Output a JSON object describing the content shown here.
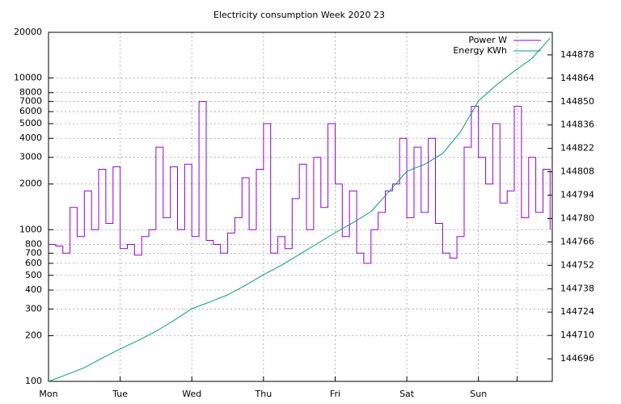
{
  "chart_data": {
    "type": "line",
    "title": "Electricity consumption Week 2020 23",
    "xlim": [
      0,
      7.03
    ],
    "xticks": [
      {
        "value": 0,
        "label": "Mon"
      },
      {
        "value": 1,
        "label": "Tue"
      },
      {
        "value": 2,
        "label": "Wed"
      },
      {
        "value": 3,
        "label": "Thu"
      },
      {
        "value": 4,
        "label": "Fri"
      },
      {
        "value": 5,
        "label": "Sat"
      },
      {
        "value": 6,
        "label": "Sun"
      },
      {
        "value": 6.54,
        "label": null
      }
    ],
    "ylim": [
      100,
      20000
    ],
    "log_y": true,
    "yticks": [
      100,
      200,
      300,
      400,
      500,
      600,
      700,
      800,
      1000,
      2000,
      3000,
      4000,
      5000,
      6000,
      7000,
      8000,
      10000,
      20000
    ],
    "y2lim": [
      144682.5,
      144891.5
    ],
    "y2ticks": [
      144696,
      144710,
      144724,
      144738,
      144752,
      144766,
      144780,
      144794,
      144808,
      144822,
      144836,
      144850,
      144864,
      144878
    ],
    "grid": true,
    "legend": "top-right",
    "series": [
      {
        "name": "Power W",
        "color": "#9400d3",
        "x": [
          0,
          0.1,
          0.2,
          0.3,
          0.4,
          0.5,
          0.6,
          0.7,
          0.8,
          0.9,
          1,
          1.1,
          1.2,
          1.3,
          1.4,
          1.5,
          1.6,
          1.7,
          1.8,
          1.9,
          2,
          2.1,
          2.2,
          2.3,
          2.4,
          2.5,
          2.6,
          2.7,
          2.8,
          2.9,
          3,
          3.1,
          3.2,
          3.3,
          3.4,
          3.5,
          3.6,
          3.7,
          3.8,
          3.9,
          4,
          4.1,
          4.2,
          4.3,
          4.4,
          4.5,
          4.6,
          4.7,
          4.8,
          4.9,
          5,
          5.1,
          5.2,
          5.3,
          5.4,
          5.5,
          5.6,
          5.7,
          5.8,
          5.9,
          6,
          6.1,
          6.2,
          6.3,
          6.4,
          6.5,
          6.6,
          6.7,
          6.8,
          6.9,
          7
        ],
        "values": [
          800,
          780,
          700,
          1400,
          900,
          1800,
          1000,
          2500,
          1100,
          2600,
          750,
          800,
          680,
          900,
          1000,
          3500,
          1200,
          2600,
          1000,
          2700,
          900,
          7000,
          850,
          800,
          700,
          950,
          1200,
          2200,
          1000,
          2500,
          5000,
          700,
          900,
          750,
          1600,
          2700,
          1000,
          3000,
          1400,
          5000,
          2000,
          900,
          1800,
          700,
          600,
          1000,
          1300,
          1800,
          2000,
          4000,
          1200,
          3500,
          1300,
          4000,
          1100,
          700,
          650,
          900,
          3500,
          6500,
          3000,
          2000,
          5000,
          1500,
          1800,
          6500,
          1200,
          3000,
          1300,
          2500,
          1000
        ]
      },
      {
        "name": "Energy KWh",
        "color": "#009e73",
        "axis": "y2",
        "x": [
          0,
          0.25,
          0.5,
          0.75,
          1,
          1.25,
          1.5,
          1.75,
          2,
          2.25,
          2.5,
          2.75,
          3,
          3.25,
          3.5,
          3.75,
          4,
          4.25,
          4.5,
          4.75,
          5,
          5.25,
          5.5,
          5.75,
          6,
          6.25,
          6.5,
          6.75,
          7
        ],
        "values": [
          144682.5,
          144686.5,
          144690.7,
          144696.5,
          144701.9,
          144707,
          144712.5,
          144719,
          144726,
          144730,
          144734.3,
          144740,
          144746.4,
          144752,
          144758.5,
          144765,
          144771.5,
          144777.5,
          144784.1,
          144796,
          144808.3,
          144812.5,
          144818.9,
          144832,
          144850.4,
          144860,
          144868.3,
          144876,
          144888
        ]
      }
    ]
  }
}
